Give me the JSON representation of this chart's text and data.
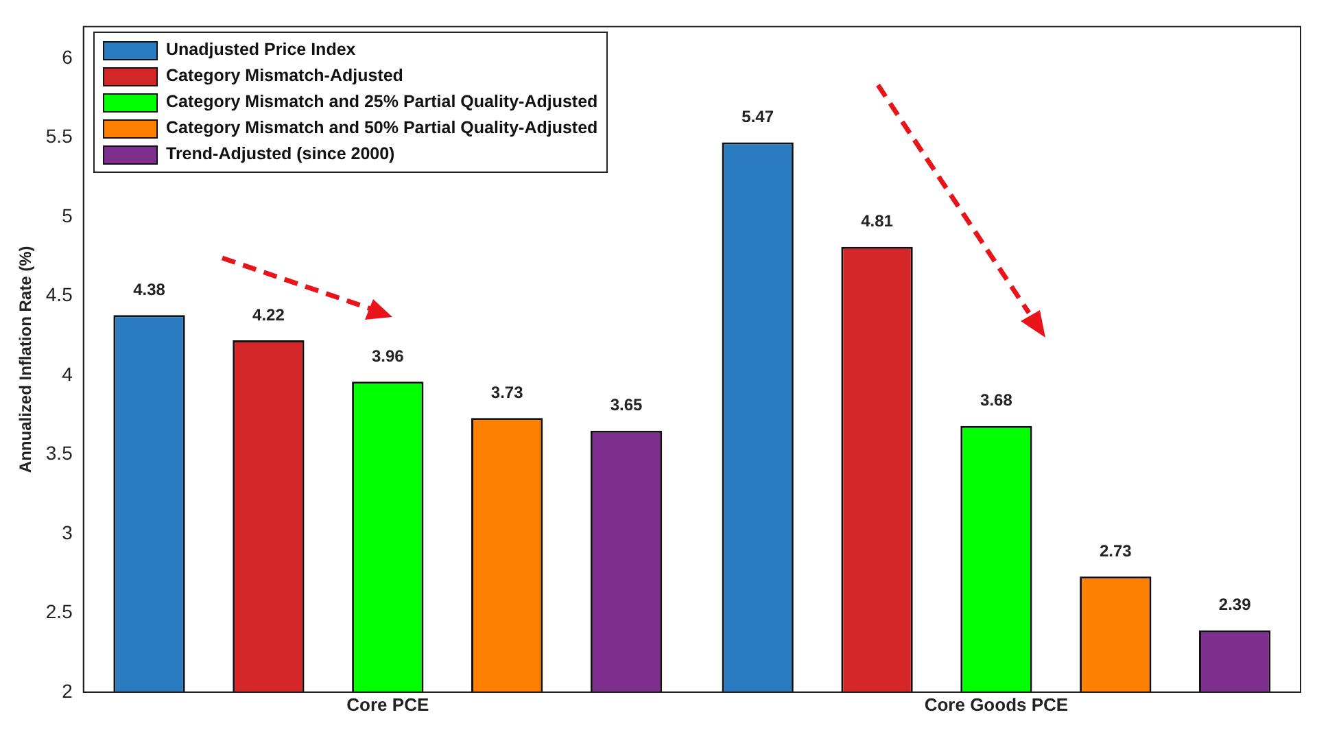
{
  "chart_data": {
    "type": "bar",
    "categories": [
      "Core PCE",
      "Core Goods PCE"
    ],
    "series": [
      {
        "name": "Unadjusted Price Index",
        "color": "#2b7bc0",
        "values": [
          4.38,
          5.47
        ]
      },
      {
        "name": "Category Mismatch-Adjusted",
        "color": "#d62728",
        "values": [
          4.22,
          4.81
        ]
      },
      {
        "name": "Category Mismatch and 25% Partial Quality-Adjusted",
        "color": "#00ff00",
        "values": [
          3.96,
          3.68
        ]
      },
      {
        "name": "Category Mismatch and 50% Partial Quality-Adjusted",
        "color": "#ff8000",
        "values": [
          3.73,
          2.73
        ]
      },
      {
        "name": "Trend-Adjusted (since 2000)",
        "color": "#7e2f8e",
        "values": [
          3.65,
          2.39
        ]
      }
    ],
    "ylabel": "Annualized Inflation Rate (%)",
    "ylim": [
      2,
      6.2
    ],
    "yticks": [
      2,
      2.5,
      3,
      3.5,
      4,
      4.5,
      5,
      5.5,
      6
    ],
    "data_labels": true,
    "grid": false,
    "legend": "top left"
  }
}
